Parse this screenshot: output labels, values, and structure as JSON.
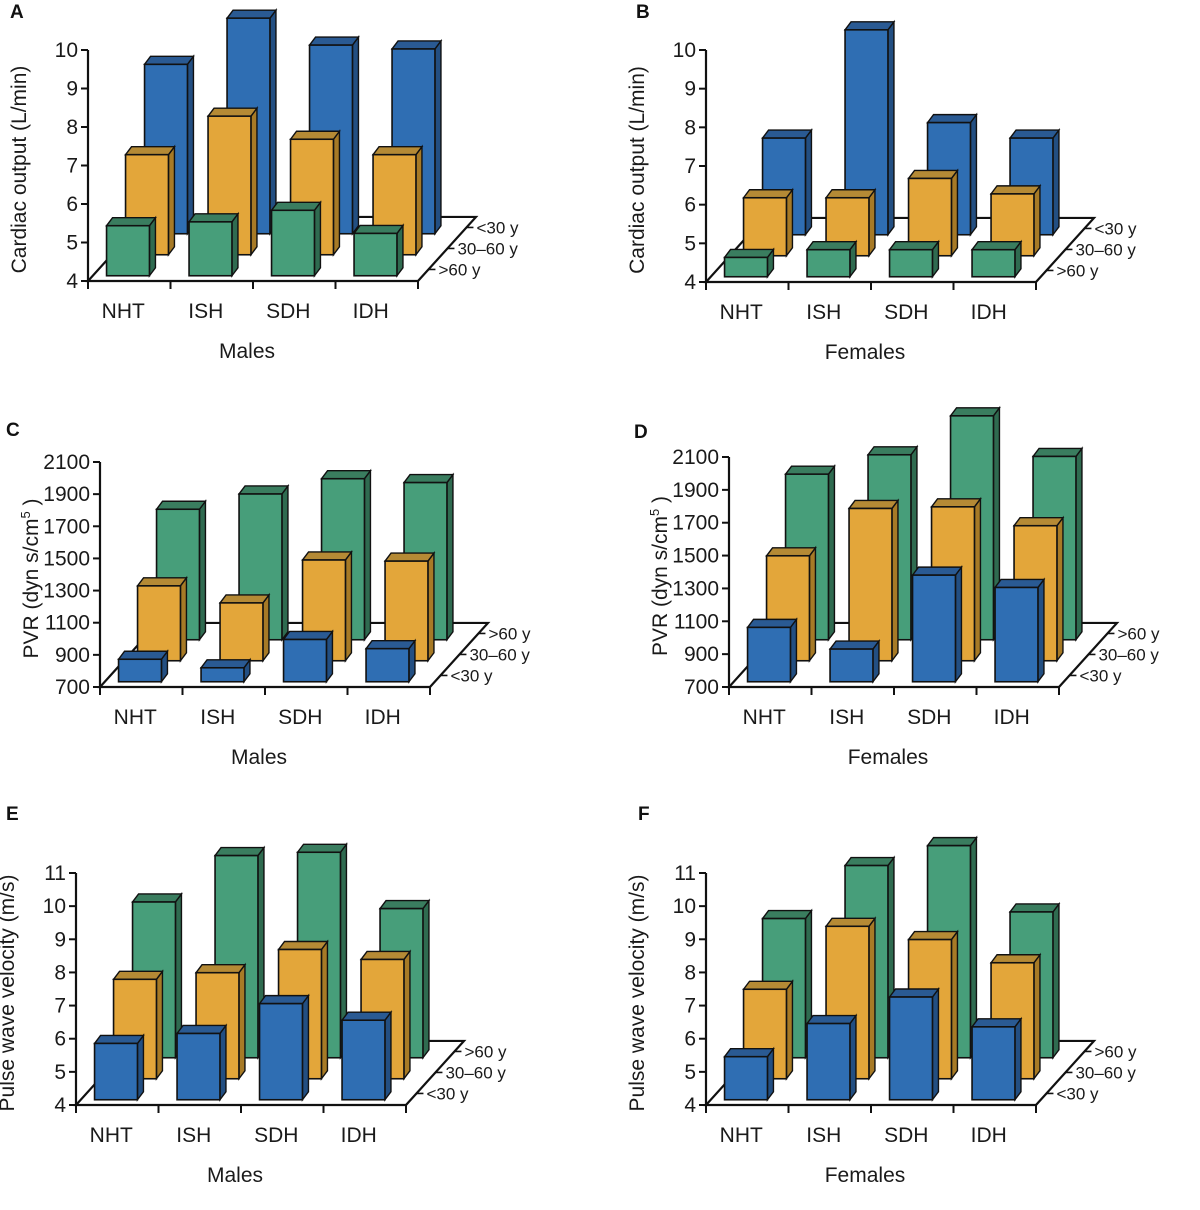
{
  "colors": {
    "blue": "#2f6eb3",
    "blue_top": "#2a5a93",
    "blue_side": "#234f82",
    "orange": "#e3a63a",
    "orange_top": "#b58a35",
    "orange_side": "#a77a26",
    "green": "#479e7a",
    "green_top": "#3a7d5f",
    "green_side": "#2f6b50",
    "outline": "#111111"
  },
  "chart_data": [
    {
      "panel": "A",
      "type": "bar",
      "subtype": "3d-column",
      "title": "",
      "xlabel": "Males",
      "ylabel": "Cardiac output (L/min)",
      "ylim": [
        4,
        10
      ],
      "yticks": [
        "4",
        "5",
        "6",
        "7",
        "8",
        "9",
        "10"
      ],
      "categories": [
        "NHT",
        "ISH",
        "SDH",
        "IDH"
      ],
      "depth_labels_front_to_back": [
        ">60 y",
        "30–60 y",
        "<30 y"
      ],
      "series": [
        {
          "name": ">60 y",
          "color_key": "green",
          "values": [
            5.3,
            5.4,
            5.7,
            5.1
          ]
        },
        {
          "name": "30–60 y",
          "color_key": "orange",
          "values": [
            6.6,
            7.6,
            7.0,
            6.6
          ]
        },
        {
          "name": "<30 y",
          "color_key": "blue",
          "values": [
            8.4,
            9.6,
            8.9,
            8.8
          ]
        }
      ]
    },
    {
      "panel": "B",
      "type": "bar",
      "subtype": "3d-column",
      "title": "",
      "xlabel": "Females",
      "ylabel": "Cardiac output (L/min)",
      "ylim": [
        4,
        10
      ],
      "yticks": [
        "4",
        "5",
        "6",
        "7",
        "8",
        "9",
        "10"
      ],
      "categories": [
        "NHT",
        "ISH",
        "SDH",
        "IDH"
      ],
      "depth_labels_front_to_back": [
        ">60 y",
        "30–60 y",
        "<30 y"
      ],
      "series": [
        {
          "name": ">60 y",
          "color_key": "green",
          "values": [
            4.5,
            4.7,
            4.7,
            4.7
          ]
        },
        {
          "name": "30–60 y",
          "color_key": "orange",
          "values": [
            5.5,
            5.5,
            6.0,
            5.6
          ]
        },
        {
          "name": "<30 y",
          "color_key": "blue",
          "values": [
            6.5,
            9.3,
            6.9,
            6.5
          ]
        }
      ]
    },
    {
      "panel": "C",
      "type": "bar",
      "subtype": "3d-column",
      "title": "",
      "xlabel": "Males",
      "ylabel": "PVR (dyn s/cm5 )",
      "ylabel_parts": [
        "PVR (dyn s/cm",
        "5",
        " )"
      ],
      "ylim": [
        700,
        2100
      ],
      "yticks": [
        "700",
        "900",
        "1100",
        "1300",
        "1500",
        "1700",
        "1900",
        "2100"
      ],
      "categories": [
        "NHT",
        "ISH",
        "SDH",
        "IDH"
      ],
      "depth_labels_front_to_back": [
        "<30 y",
        "30–60 y",
        ">60 y"
      ],
      "series": [
        {
          "name": "<30 y",
          "color_key": "blue",
          "values": [
            840,
            787,
            963,
            906
          ]
        },
        {
          "name": "30–60 y",
          "color_key": "orange",
          "values": [
            1166,
            1060,
            1327,
            1320
          ]
        },
        {
          "name": ">60 y",
          "color_key": "green",
          "values": [
            1512,
            1607,
            1702,
            1678
          ]
        }
      ]
    },
    {
      "panel": "D",
      "type": "bar",
      "subtype": "3d-column",
      "title": "",
      "xlabel": "Females",
      "ylabel": "PVR (dyn s/cm5 )",
      "ylabel_parts": [
        "PVR (dyn s/cm",
        "5",
        " )"
      ],
      "ylim": [
        700,
        2100
      ],
      "yticks": [
        "700",
        "900",
        "1100",
        "1300",
        "1500",
        "1700",
        "1900",
        "2100"
      ],
      "categories": [
        "NHT",
        "ISH",
        "SDH",
        "IDH"
      ],
      "depth_labels_front_to_back": [
        "<30 y",
        "30–60 y",
        ">60 y"
      ],
      "series": [
        {
          "name": "<30 y",
          "color_key": "blue",
          "values": [
            1031,
            899,
            1349,
            1274
          ]
        },
        {
          "name": "30–60 y",
          "color_key": "orange",
          "values": [
            1339,
            1627,
            1637,
            1522
          ]
        },
        {
          "name": ">60 y",
          "color_key": "green",
          "values": [
            1708,
            1826,
            2063,
            1816
          ]
        }
      ]
    },
    {
      "panel": "E",
      "type": "bar",
      "subtype": "3d-column",
      "title": "",
      "xlabel": "Males",
      "ylabel": "Pulse wave velocity (m/s)",
      "ylim": [
        4,
        11
      ],
      "yticks": [
        "4",
        "5",
        "6",
        "7",
        "8",
        "9",
        "10",
        "11"
      ],
      "categories": [
        "NHT",
        "ISH",
        "SDH",
        "IDH"
      ],
      "depth_labels_front_to_back": [
        "<30 y",
        "30–60 y",
        ">60 y"
      ],
      "series": [
        {
          "name": "<30 y",
          "color_key": "blue",
          "values": [
            5.7,
            6.0,
            6.9,
            6.4
          ]
        },
        {
          "name": "30–60 y",
          "color_key": "orange",
          "values": [
            7.0,
            7.2,
            7.9,
            7.6
          ]
        },
        {
          "name": ">60 y",
          "color_key": "green",
          "values": [
            8.7,
            10.1,
            10.2,
            8.5
          ]
        }
      ]
    },
    {
      "panel": "F",
      "type": "bar",
      "subtype": "3d-column",
      "title": "",
      "xlabel": "Females",
      "ylabel": "Pulse wave velocity (m/s)",
      "ylim": [
        4,
        11
      ],
      "yticks": [
        "4",
        "5",
        "6",
        "7",
        "8",
        "9",
        "10",
        "11"
      ],
      "categories": [
        "NHT",
        "ISH",
        "SDH",
        "IDH"
      ],
      "depth_labels_front_to_back": [
        "<30 y",
        "30–60 y",
        ">60 y"
      ],
      "series": [
        {
          "name": "<30 y",
          "color_key": "blue",
          "values": [
            5.3,
            6.3,
            7.1,
            6.2
          ]
        },
        {
          "name": "30–60 y",
          "color_key": "orange",
          "values": [
            6.7,
            8.6,
            8.2,
            7.5
          ]
        },
        {
          "name": ">60 y",
          "color_key": "green",
          "values": [
            8.2,
            9.8,
            10.4,
            8.4
          ]
        }
      ]
    }
  ]
}
